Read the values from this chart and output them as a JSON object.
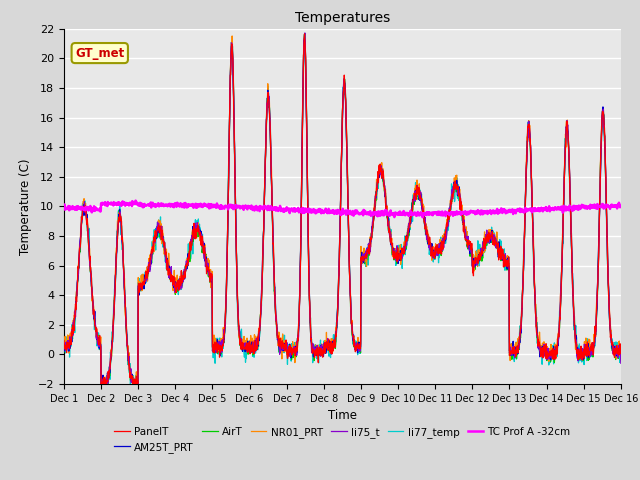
{
  "title": "Temperatures",
  "xlabel": "Time",
  "ylabel": "Temperature (C)",
  "ylim": [
    -2,
    22
  ],
  "xlim": [
    0,
    15
  ],
  "xtick_labels": [
    "Dec 1",
    "Dec 2",
    "Dec 3",
    "Dec 4",
    "Dec 5",
    "Dec 6",
    "Dec 7",
    "Dec 8",
    "Dec 9",
    "Dec 10",
    "Dec 11",
    "Dec 12",
    "Dec 13",
    "Dec 14",
    "Dec 15",
    "Dec 16"
  ],
  "ytick_vals": [
    -2,
    0,
    2,
    4,
    6,
    8,
    10,
    12,
    14,
    16,
    18,
    20,
    22
  ],
  "series_colors": {
    "PanelT": "#ff0000",
    "AM25T_PRT": "#0000cc",
    "AirT": "#00cc00",
    "NR01_PRT": "#ff8800",
    "li75_t": "#8800cc",
    "li77_temp": "#00cccc",
    "TC Prof A -32cm": "#ff00ff"
  },
  "gt_met_label": "GT_met",
  "plot_bg_color": "#e8e8e8",
  "fig_bg_color": "#d8d8d8"
}
